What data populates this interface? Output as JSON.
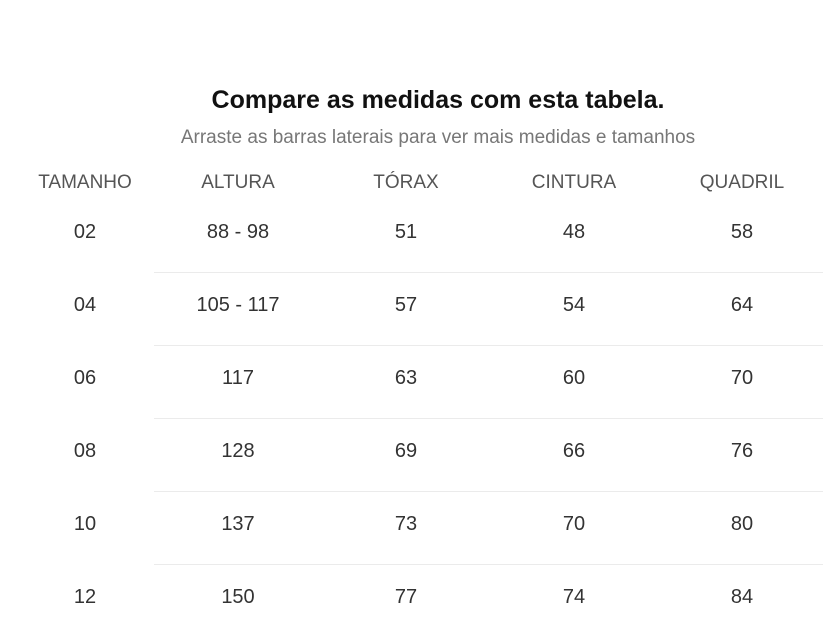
{
  "header": {
    "title": "Compare as medidas com esta tabela.",
    "subtitle": "Arraste as barras laterais para ver mais medidas e tamanhos"
  },
  "table": {
    "columns": [
      "TAMANHO",
      "ALTURA",
      "TÓRAX",
      "CINTURA",
      "QUADRIL"
    ],
    "rows": [
      [
        "02",
        "88 - 98",
        "51",
        "48",
        "58"
      ],
      [
        "04",
        "105 - 117",
        "57",
        "54",
        "64"
      ],
      [
        "06",
        "117",
        "63",
        "60",
        "70"
      ],
      [
        "08",
        "128",
        "69",
        "66",
        "76"
      ],
      [
        "10",
        "137",
        "73",
        "70",
        "80"
      ],
      [
        "12",
        "150",
        "77",
        "74",
        "84"
      ]
    ]
  },
  "colors": {
    "title": "#111111",
    "subtitle": "#777777",
    "header_text": "#555555",
    "cell_text": "#333333",
    "divider": "#ebebeb"
  }
}
